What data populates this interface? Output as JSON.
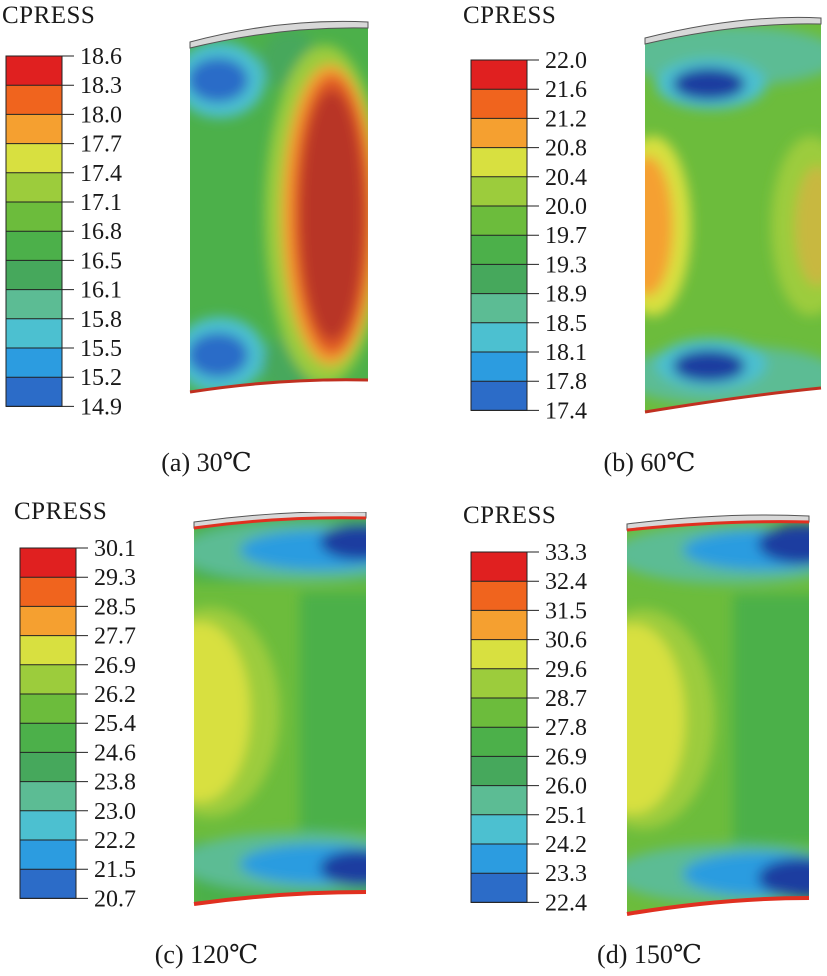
{
  "panels": [
    {
      "legend_title": "CPRESS",
      "levels": [
        "18.6",
        "18.3",
        "18.0",
        "17.7",
        "17.4",
        "17.1",
        "16.8",
        "16.5",
        "16.1",
        "15.8",
        "15.5",
        "15.2",
        "14.9"
      ],
      "caption": "(a) 30℃"
    },
    {
      "legend_title": "CPRESS",
      "levels": [
        "22.0",
        "21.6",
        "21.2",
        "20.8",
        "20.4",
        "20.0",
        "19.7",
        "19.3",
        "18.9",
        "18.5",
        "18.1",
        "17.8",
        "17.4"
      ],
      "caption": "(b) 60℃"
    },
    {
      "legend_title": "CPRESS",
      "levels": [
        "30.1",
        "29.3",
        "28.5",
        "27.7",
        "26.9",
        "26.2",
        "25.4",
        "24.6",
        "23.8",
        "23.0",
        "22.2",
        "21.5",
        "20.7"
      ],
      "caption": "(c) 120℃"
    },
    {
      "legend_title": "CPRESS",
      "levels": [
        "33.3",
        "32.4",
        "31.5",
        "30.6",
        "29.6",
        "28.7",
        "27.8",
        "26.9",
        "26.0",
        "25.1",
        "24.2",
        "23.3",
        "22.4"
      ],
      "caption": "(d) 150℃"
    }
  ],
  "colormap": [
    "#e02020",
    "#f0641e",
    "#f5a030",
    "#d8e040",
    "#9ccc3c",
    "#6cbc3c",
    "#4cb04a",
    "#46a85c",
    "#5cbc94",
    "#4cc0d0",
    "#2c9ce0",
    "#2c6cc8",
    "#1c3ca0"
  ]
}
